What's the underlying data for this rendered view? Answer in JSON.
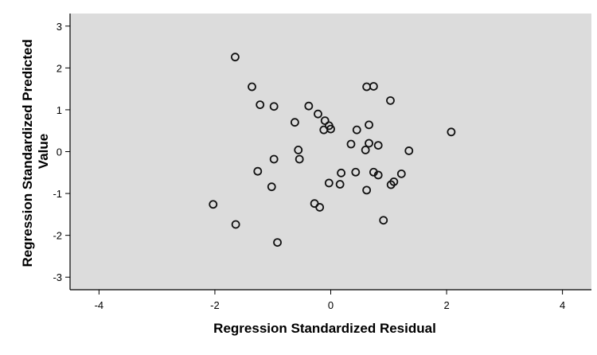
{
  "chart_data": {
    "type": "scatter",
    "title": "",
    "xlabel": "Regression Standardized Residual",
    "ylabel_lines": [
      "Regression Standardized Predicted",
      "Value"
    ],
    "xlim": [
      -4.5,
      4.5
    ],
    "ylim": [
      -3.3,
      3.3
    ],
    "xticks": [
      -4,
      -2,
      0,
      2,
      4
    ],
    "yticks": [
      -3,
      -2,
      -1,
      0,
      1,
      2,
      3
    ],
    "grid": false,
    "colors": {
      "plot_background": "#dcdcdc",
      "marker_stroke": "#111111",
      "axis": "#000000"
    },
    "marker": "hollow-circle",
    "points": [
      {
        "x": -1.65,
        "y": 2.26
      },
      {
        "x": -1.36,
        "y": 1.55
      },
      {
        "x": -1.22,
        "y": 1.12
      },
      {
        "x": -0.98,
        "y": 1.08
      },
      {
        "x": -0.38,
        "y": 1.09
      },
      {
        "x": -0.22,
        "y": 0.9
      },
      {
        "x": -0.62,
        "y": 0.7
      },
      {
        "x": -0.1,
        "y": 0.74
      },
      {
        "x": -0.03,
        "y": 0.62
      },
      {
        "x": -0.12,
        "y": 0.52
      },
      {
        "x": 0.0,
        "y": 0.54
      },
      {
        "x": 0.45,
        "y": 0.52
      },
      {
        "x": 0.66,
        "y": 0.64
      },
      {
        "x": 0.62,
        "y": 1.55
      },
      {
        "x": 0.74,
        "y": 1.56
      },
      {
        "x": 1.03,
        "y": 1.22
      },
      {
        "x": 0.35,
        "y": 0.18
      },
      {
        "x": 0.6,
        "y": 0.04
      },
      {
        "x": 0.66,
        "y": 0.2
      },
      {
        "x": 0.82,
        "y": 0.15
      },
      {
        "x": 1.35,
        "y": 0.02
      },
      {
        "x": 2.08,
        "y": 0.47
      },
      {
        "x": -0.56,
        "y": 0.04
      },
      {
        "x": -0.54,
        "y": -0.18
      },
      {
        "x": -0.98,
        "y": -0.18
      },
      {
        "x": -1.26,
        "y": -0.47
      },
      {
        "x": -1.02,
        "y": -0.84
      },
      {
        "x": 0.18,
        "y": -0.51
      },
      {
        "x": 0.43,
        "y": -0.49
      },
      {
        "x": 0.74,
        "y": -0.49
      },
      {
        "x": 0.82,
        "y": -0.56
      },
      {
        "x": 1.22,
        "y": -0.53
      },
      {
        "x": -0.03,
        "y": -0.75
      },
      {
        "x": 0.16,
        "y": -0.78
      },
      {
        "x": 0.62,
        "y": -0.92
      },
      {
        "x": 1.04,
        "y": -0.79
      },
      {
        "x": 1.09,
        "y": -0.72
      },
      {
        "x": -2.03,
        "y": -1.26
      },
      {
        "x": -0.28,
        "y": -1.24
      },
      {
        "x": -0.19,
        "y": -1.33
      },
      {
        "x": -1.64,
        "y": -1.74
      },
      {
        "x": 0.91,
        "y": -1.64
      },
      {
        "x": -0.92,
        "y": -2.17
      }
    ]
  }
}
